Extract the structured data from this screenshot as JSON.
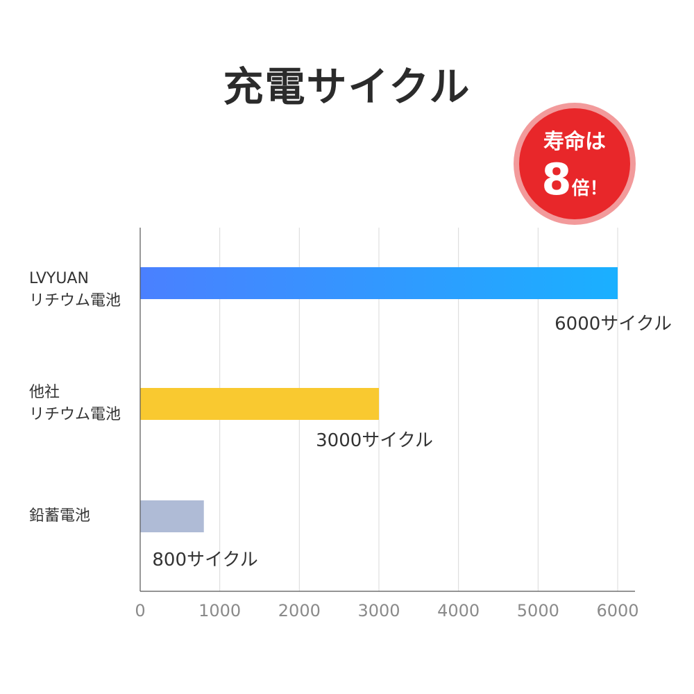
{
  "title": "充電サイクル",
  "badge": {
    "line1": "寿命は",
    "number": "8",
    "suffix": "倍！"
  },
  "chart_data": {
    "type": "bar",
    "orientation": "horizontal",
    "categories": [
      [
        "LVYUAN",
        "リチウム電池"
      ],
      [
        "他社",
        "リチウム電池"
      ],
      [
        "鉛蓄電池"
      ]
    ],
    "values": [
      6000,
      3000,
      800
    ],
    "value_labels": [
      "6000サイクル",
      "3000サイクル",
      "800サイクル"
    ],
    "xlim": [
      0,
      6000
    ],
    "xticks": [
      0,
      1000,
      2000,
      3000,
      4000,
      5000,
      6000
    ],
    "grid": true,
    "colors": {
      "bar1_start": "#4a80ff",
      "bar1_end": "#1ab0ff",
      "bar2": "#f9c930",
      "bar3": "#afbbd6",
      "axis": "#555555",
      "grid": "#d9d9d9",
      "tick_text": "#8a8a8a",
      "label_text": "#333333"
    }
  }
}
